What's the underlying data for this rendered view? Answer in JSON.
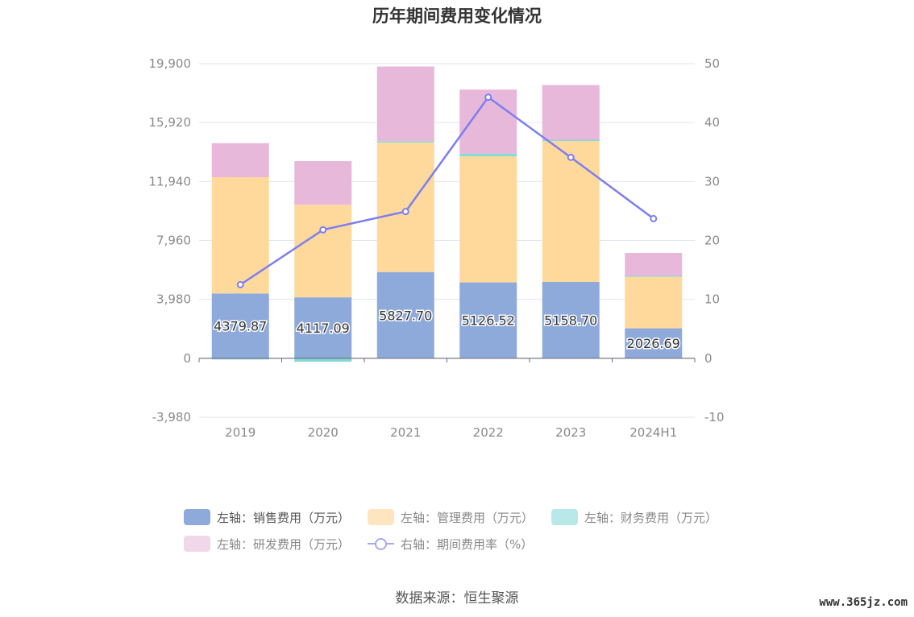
{
  "chart_data": {
    "type": "bar",
    "title": "历年期间费用变化情况",
    "categories": [
      "2019",
      "2020",
      "2021",
      "2022",
      "2023",
      "2024H1"
    ],
    "stacked": true,
    "left_axis": {
      "ticks": [
        "19,900",
        "15,920",
        "11,940",
        "7,960",
        "3,980",
        "0",
        "-3,980"
      ],
      "ylim": [
        -3980,
        19900
      ]
    },
    "right_axis": {
      "ticks": [
        "50",
        "40",
        "30",
        "20",
        "10",
        "0",
        "-10"
      ],
      "ylim": [
        -10,
        50
      ]
    },
    "series": [
      {
        "name": "左轴：销售费用（万元）",
        "axis": "left",
        "color": "#8eaadb",
        "values": [
          4379.87,
          4117.09,
          5827.7,
          5126.52,
          5158.7,
          2026.69
        ],
        "labels": [
          "4379.87",
          "4117.09",
          "5827.70",
          "5126.52",
          "5158.70",
          "2026.69"
        ]
      },
      {
        "name": "左轴：管理费用（万元）",
        "axis": "left",
        "color": "#ffd99c",
        "values": [
          7850,
          6250,
          8750,
          8520,
          9520,
          3480
        ]
      },
      {
        "name": "左轴：财务费用（万元）",
        "axis": "left",
        "color": "#84d9d9",
        "values": [
          -80,
          -230,
          80,
          180,
          80,
          60
        ]
      },
      {
        "name": "左轴：研发费用（万元）",
        "axis": "left",
        "color": "#e8b8da",
        "values": [
          2300,
          2950,
          5050,
          4320,
          3700,
          1550
        ]
      },
      {
        "name": "右轴：期间费用率（%）",
        "axis": "right",
        "type": "line",
        "color": "#7b7ff0",
        "values": [
          12.5,
          21.8,
          24.9,
          44.3,
          34.1,
          23.7
        ]
      }
    ]
  },
  "legend": {
    "sales": "左轴：销售费用（万元）",
    "admin": "左轴：管理费用（万元）",
    "finance": "左轴：财务费用（万元）",
    "rnd": "左轴：研发费用（万元）",
    "rate": "右轴：期间费用率（%）"
  },
  "source": "数据来源：恒生聚源",
  "watermark": "www.365jz.com",
  "colors": {
    "legend_sales": "#8eaadb",
    "legend_admin": "#ffe5bf",
    "legend_finance": "#b9e8e8",
    "legend_rnd": "#f1d7ea"
  }
}
